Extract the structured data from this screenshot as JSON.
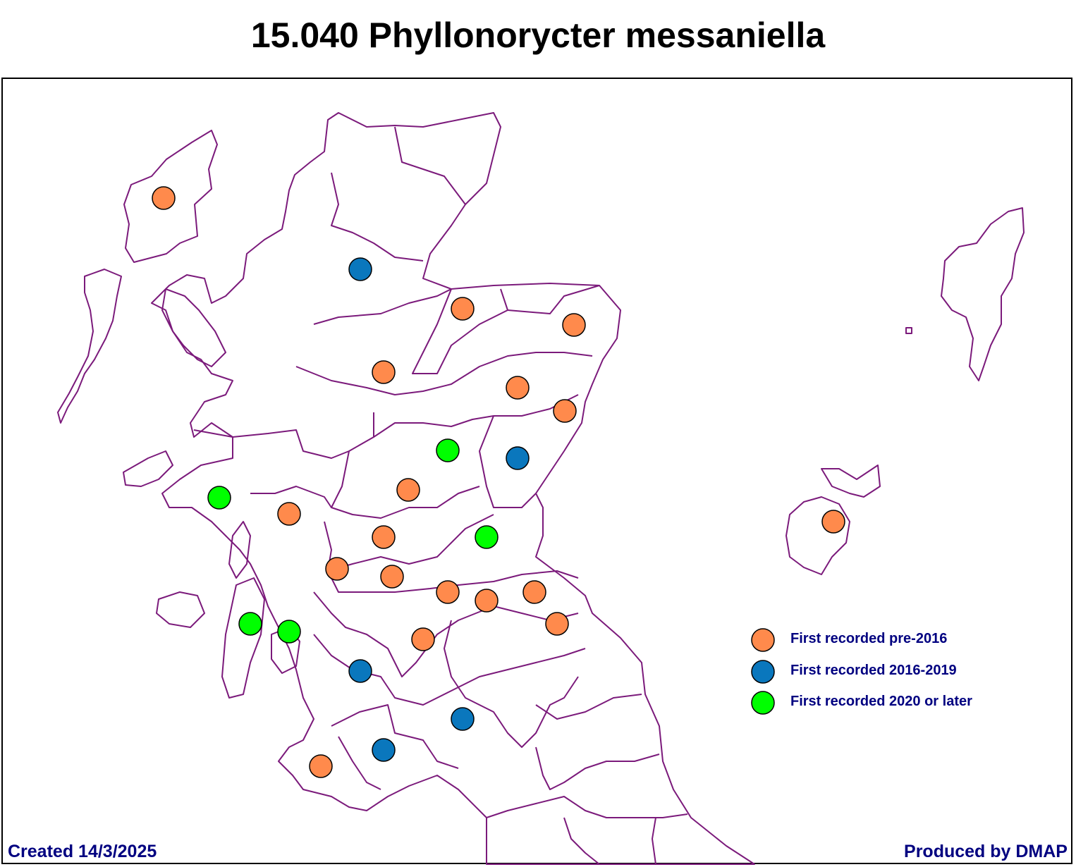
{
  "title": "15.040 Phyllonorycter messaniella",
  "footer": {
    "created": "Created 14/3/2025",
    "producer": "Produced by DMAP"
  },
  "colors": {
    "boundary": "#7b1a7b",
    "pre2016": "#ff8a4c",
    "y2016_2019": "#0a77bd",
    "y2020_later": "#00ff00"
  },
  "legend": [
    {
      "key": "pre2016",
      "label": "First recorded pre-2016"
    },
    {
      "key": "y2016_2019",
      "label": "First recorded 2016-2019"
    },
    {
      "key": "y2020_later",
      "label": "First recorded 2020 or later"
    }
  ],
  "records": [
    {
      "cat": "pre2016"
    },
    {
      "cat": "y2016_2019"
    },
    {
      "cat": "pre2016"
    },
    {
      "cat": "pre2016"
    },
    {
      "cat": "pre2016"
    },
    {
      "cat": "pre2016"
    },
    {
      "cat": "pre2016"
    },
    {
      "cat": "y2020_later"
    },
    {
      "cat": "y2016_2019"
    },
    {
      "cat": "y2020_later"
    },
    {
      "cat": "pre2016"
    },
    {
      "cat": "pre2016"
    },
    {
      "cat": "pre2016"
    },
    {
      "cat": "y2020_later"
    },
    {
      "cat": "pre2016"
    },
    {
      "cat": "pre2016"
    },
    {
      "cat": "pre2016"
    },
    {
      "cat": "pre2016"
    },
    {
      "cat": "pre2016"
    },
    {
      "cat": "pre2016"
    },
    {
      "cat": "y2020_later"
    },
    {
      "cat": "y2020_later"
    },
    {
      "cat": "pre2016"
    },
    {
      "cat": "y2016_2019"
    },
    {
      "cat": "y2016_2019"
    },
    {
      "cat": "y2016_2019"
    },
    {
      "cat": "pre2016"
    },
    {
      "cat": "pre2016"
    }
  ]
}
